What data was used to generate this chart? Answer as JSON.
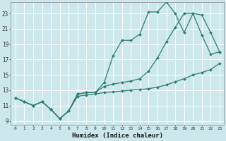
{
  "xlabel": "Humidex (Indice chaleur)",
  "bg_color": "#cce8ec",
  "grid_color": "#ffffff",
  "line_color": "#2e7d6e",
  "x_ticks": [
    0,
    1,
    2,
    3,
    4,
    5,
    6,
    7,
    8,
    9,
    10,
    11,
    12,
    13,
    14,
    15,
    16,
    17,
    18,
    19,
    20,
    21,
    22,
    23
  ],
  "y_ticks": [
    9,
    11,
    13,
    15,
    17,
    19,
    21,
    23
  ],
  "ylim": [
    8.5,
    24.5
  ],
  "xlim": [
    -0.5,
    23.5
  ],
  "line1_x": [
    0,
    1,
    2,
    3,
    4,
    5,
    6,
    7,
    8,
    9,
    10,
    11,
    12,
    13,
    14,
    15,
    16,
    17,
    18,
    19,
    20,
    21,
    22,
    23
  ],
  "line1_y": [
    12,
    11.5,
    11,
    11.5,
    10.5,
    9.3,
    10.3,
    12.5,
    12.7,
    12.7,
    14.0,
    17.5,
    19.5,
    19.5,
    20.3,
    23.2,
    23.2,
    24.5,
    23.0,
    20.5,
    23.0,
    20.2,
    17.7,
    18.0
  ],
  "line2_x": [
    0,
    1,
    2,
    3,
    4,
    5,
    6,
    7,
    8,
    9,
    10,
    11,
    12,
    13,
    14,
    15,
    16,
    17,
    18,
    19,
    20,
    21,
    22,
    23
  ],
  "line2_y": [
    12,
    11.5,
    11,
    11.5,
    10.5,
    9.3,
    10.3,
    12.5,
    12.7,
    12.7,
    13.5,
    13.8,
    14.0,
    14.2,
    14.5,
    15.5,
    17.2,
    19.3,
    21.2,
    23.0,
    23.0,
    22.8,
    20.5,
    18.0
  ],
  "line3_x": [
    0,
    1,
    2,
    3,
    4,
    5,
    6,
    7,
    8,
    9,
    10,
    11,
    12,
    13,
    14,
    15,
    16,
    17,
    18,
    19,
    20,
    21,
    22,
    23
  ],
  "line3_y": [
    12,
    11.5,
    11,
    11.5,
    10.5,
    9.3,
    10.3,
    12.2,
    12.4,
    12.5,
    12.7,
    12.8,
    12.9,
    13.0,
    13.1,
    13.2,
    13.4,
    13.7,
    14.1,
    14.5,
    15.0,
    15.3,
    15.7,
    16.5
  ]
}
